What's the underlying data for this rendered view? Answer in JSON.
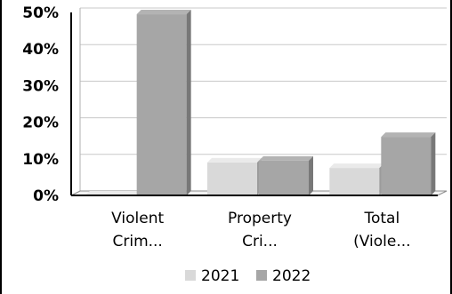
{
  "chart_data": {
    "type": "bar",
    "categories": [
      [
        "Violent",
        "Crim..."
      ],
      [
        "Property",
        "Cri..."
      ],
      [
        "Total",
        "(Viole..."
      ]
    ],
    "series": [
      {
        "name": "2021",
        "values": [
          0,
          9,
          7.5
        ],
        "color": "#d9d9d9"
      },
      {
        "name": "2022",
        "values": [
          49.5,
          9.5,
          16
        ],
        "color": "#a6a6a6"
      }
    ],
    "ylim": [
      0,
      50
    ],
    "yticks": [
      {
        "value": 0,
        "label": "0%"
      },
      {
        "value": 10,
        "label": "10%"
      },
      {
        "value": 20,
        "label": "20%"
      },
      {
        "value": 30,
        "label": "30%"
      },
      {
        "value": 40,
        "label": "40%"
      },
      {
        "value": 50,
        "label": "50%"
      }
    ],
    "grid": true,
    "legend_position": "bottom",
    "three_d": true
  }
}
